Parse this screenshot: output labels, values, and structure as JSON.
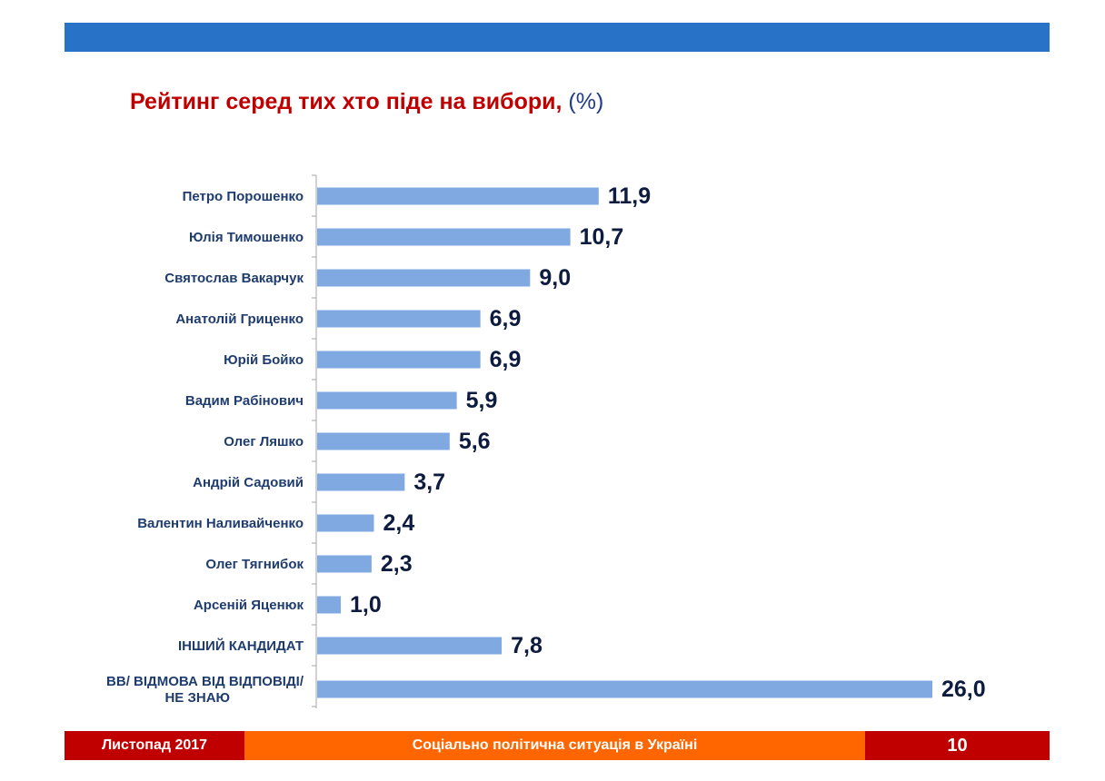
{
  "title": "Рейтинг серед тих хто піде на вибори,",
  "title_unit": "(%)",
  "chart_data": {
    "type": "bar",
    "orientation": "horizontal",
    "categories": [
      "Петро Порошенко",
      "Юлія Тимошенко",
      "Святослав Вакарчук",
      "Анатолій Гриценко",
      "Юрій Бойко",
      "Вадим Рабінович",
      "Олег Ляшко",
      "Андрій Садовий",
      "Валентин Наливайченко",
      "Олег Тягнибок",
      "Арсеній Яценюк",
      "ІНШИЙ КАНДИДАТ",
      "ВВ/ ВІДМОВА ВІД ВІДПОВІДІ/ НЕ ЗНАЮ"
    ],
    "values": [
      11.9,
      10.7,
      9.0,
      6.9,
      6.9,
      5.9,
      5.6,
      3.7,
      2.4,
      2.3,
      1.0,
      7.8,
      26.0
    ],
    "value_labels": [
      "11,9",
      "10,7",
      "9,0",
      "6,9",
      "6,9",
      "5,9",
      "5,6",
      "3,7",
      "2,4",
      "2,3",
      "1,0",
      "7,8",
      "26,0"
    ],
    "bar_color": "#7fa9e0",
    "label_color": "#1f3c6e",
    "value_color": "#0d1b3e",
    "axis_color": "#a6a6a6"
  },
  "footer": {
    "date": "Листопад 2017",
    "subtitle": "Соціально політична ситуація в Україні",
    "page": "10"
  },
  "colors": {
    "top_bar": "#2873c8",
    "title": "#c00000",
    "footer_red": "#c00000",
    "footer_orange": "#ff6600"
  }
}
